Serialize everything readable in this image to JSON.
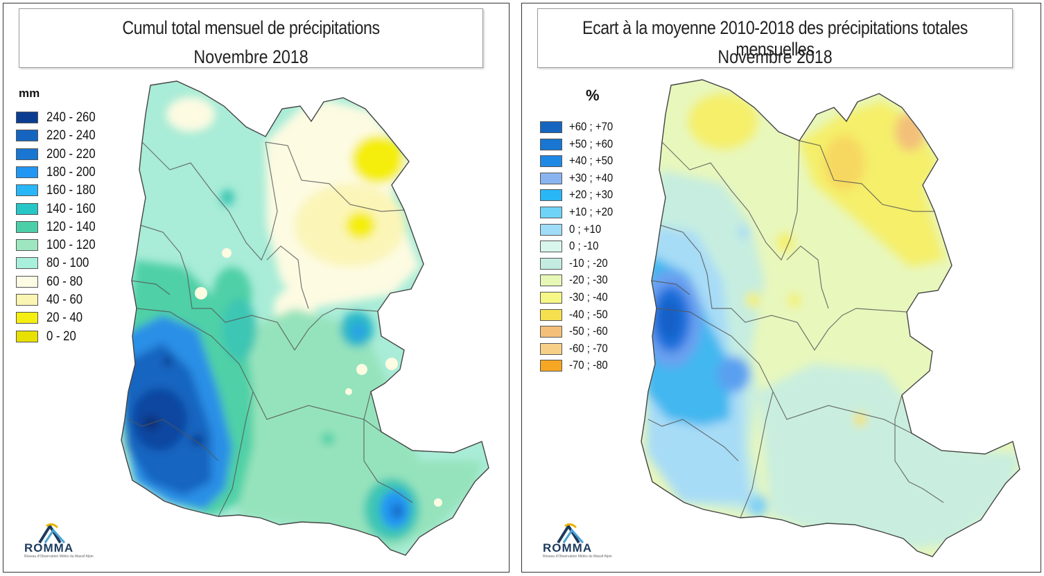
{
  "left_panel": {
    "title_line1": "Cumul total mensuel de précipitations",
    "title_line2": "Novembre 2018",
    "legend_unit": "mm",
    "legend": [
      {
        "label": "240 - 260",
        "color": "#0a3d91"
      },
      {
        "label": "220 - 240",
        "color": "#1565c0"
      },
      {
        "label": "200 - 220",
        "color": "#1976d2"
      },
      {
        "label": "180 - 200",
        "color": "#2196f3"
      },
      {
        "label": "160 - 180",
        "color": "#29b6f6"
      },
      {
        "label": "140 - 160",
        "color": "#26c6c6"
      },
      {
        "label": "120 - 140",
        "color": "#4ccfa8"
      },
      {
        "label": "100 - 120",
        "color": "#9ee6c0"
      },
      {
        "label": "80 - 100",
        "color": "#a8f0dc"
      },
      {
        "label": "60 - 80",
        "color": "#fdfbe4"
      },
      {
        "label": "40 - 60",
        "color": "#fbf5b4"
      },
      {
        "label": "20 - 40",
        "color": "#f5ee11"
      },
      {
        "label": "0 - 20",
        "color": "#e8e000"
      }
    ],
    "logo_text": "ROMMA",
    "logo_subtitle": "Réseau d'Observation Météo du Massif Alpin"
  },
  "right_panel": {
    "title_line1": "Ecart à la moyenne 2010-2018 des précipitations totales mensuelles",
    "title_line2": "Novembre 2018",
    "legend_unit": "%",
    "legend": [
      {
        "label": "+60 ; +70",
        "color": "#1565c0"
      },
      {
        "label": "+50 ; +60",
        "color": "#1976d2"
      },
      {
        "label": "+40 ; +50",
        "color": "#1e88e5"
      },
      {
        "label": "+30 ; +40",
        "color": "#8ab4f0"
      },
      {
        "label": "+20 ; +30",
        "color": "#29b6f6"
      },
      {
        "label": "+10 ; +20",
        "color": "#6fd3f7"
      },
      {
        "label": "0 ; +10",
        "color": "#9edcf8"
      },
      {
        "label": "0 ; -10",
        "color": "#d8f6ec"
      },
      {
        "label": "-10 ; -20",
        "color": "#c4ece0"
      },
      {
        "label": "-20 ; -30",
        "color": "#e6f7b6"
      },
      {
        "label": "-30 ; -40",
        "color": "#f7f788"
      },
      {
        "label": "-40 ; -50",
        "color": "#f6e050"
      },
      {
        "label": "-50 ; -60",
        "color": "#f3c07a"
      },
      {
        "label": "-60 ; -70",
        "color": "#f7d088"
      },
      {
        "label": "-70 ; -80",
        "color": "#f5a623"
      }
    ],
    "logo_text": "ROMMA",
    "logo_subtitle": "Réseau d'Observation Météo du Massif Alpin"
  }
}
